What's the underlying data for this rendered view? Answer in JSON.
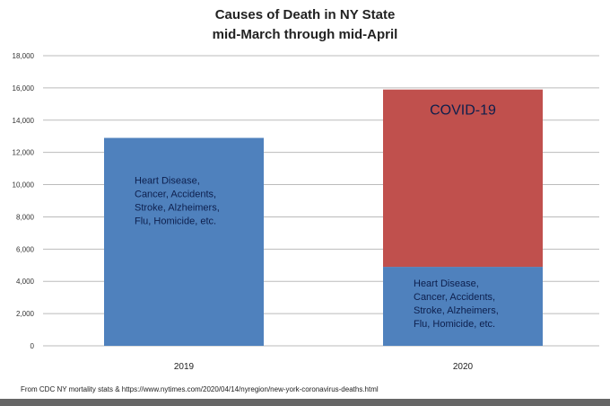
{
  "chart_data": {
    "type": "bar",
    "stacked": true,
    "title": "Causes of Death in NY State",
    "subtitle": "mid-March through mid-April",
    "categories": [
      "2019",
      "2020"
    ],
    "series": [
      {
        "values": [
          12900,
          4900
        ],
        "color": "#4f81bd",
        "labels": [
          "Heart Disease,\nCancer, Accidents,\nStroke, Alzheimers,\nFlu, Homicide, etc.",
          "Heart Disease,\nCancer, Accidents,\nStroke, Alzheimers,\nFlu, Homicide, etc."
        ]
      },
      {
        "values": [
          0,
          11000
        ],
        "color": "#c0504d",
        "labels": [
          "",
          "COVID-19"
        ]
      }
    ],
    "ylim": [
      0,
      18000
    ],
    "yticks": [
      "0",
      "2,000",
      "4,000",
      "6,000",
      "8,000",
      "10,000",
      "12,000",
      "14,000",
      "16,000",
      "18,000"
    ],
    "grid": true,
    "xlabel": "",
    "ylabel": ""
  },
  "source_note": "From CDC NY mortality stats & https://www.nytimes.com/2020/04/14/nyregion/new-york-coronavirus-deaths.html"
}
